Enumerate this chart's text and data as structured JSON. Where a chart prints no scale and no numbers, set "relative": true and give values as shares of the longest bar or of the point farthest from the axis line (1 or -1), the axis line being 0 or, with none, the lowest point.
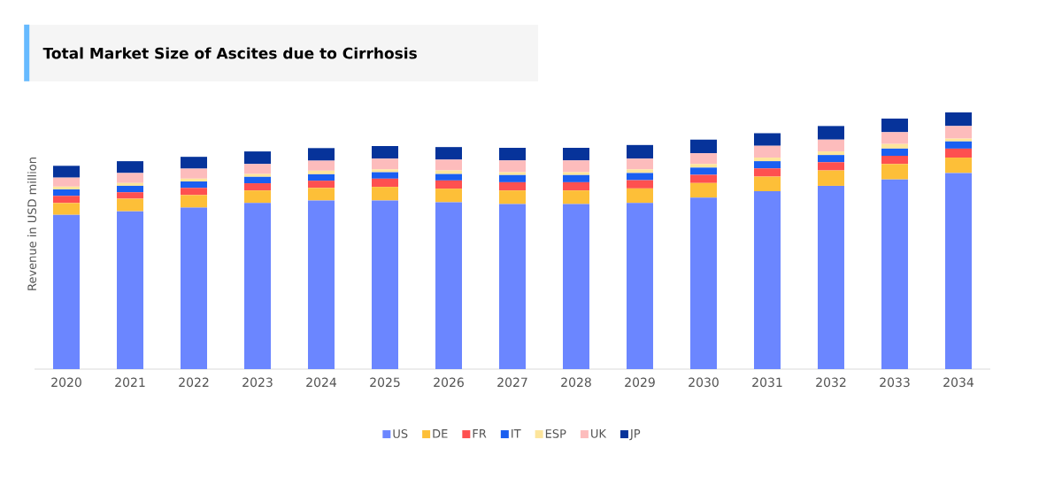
{
  "chart_data": {
    "type": "bar",
    "title": "Total Market Size of Ascites due to Cirrhosis",
    "ylabel": "Revenue in USD million",
    "relative": true,
    "stacked": true,
    "legend": "bottom",
    "categories": [
      "2020",
      "2021",
      "2022",
      "2023",
      "2024",
      "2025",
      "2026",
      "2027",
      "2028",
      "2029",
      "2030",
      "2031",
      "2032",
      "2033",
      "2034"
    ],
    "series": [
      {
        "name": "US",
        "color": "#6b86ff",
        "values": [
          0.601,
          0.615,
          0.629,
          0.647,
          0.657,
          0.657,
          0.65,
          0.643,
          0.643,
          0.647,
          0.668,
          0.693,
          0.714,
          0.739,
          0.764
        ]
      },
      {
        "name": "DE",
        "color": "#fdbf38",
        "values": [
          0.046,
          0.049,
          0.049,
          0.049,
          0.049,
          0.053,
          0.053,
          0.053,
          0.053,
          0.057,
          0.057,
          0.057,
          0.06,
          0.06,
          0.06
        ]
      },
      {
        "name": "FR",
        "color": "#fe5050",
        "values": [
          0.028,
          0.025,
          0.028,
          0.028,
          0.028,
          0.032,
          0.032,
          0.032,
          0.032,
          0.032,
          0.032,
          0.032,
          0.032,
          0.032,
          0.035
        ]
      },
      {
        "name": "IT",
        "color": "#1a5ff0",
        "values": [
          0.025,
          0.025,
          0.025,
          0.025,
          0.025,
          0.025,
          0.025,
          0.028,
          0.028,
          0.028,
          0.028,
          0.028,
          0.028,
          0.028,
          0.028
        ]
      },
      {
        "name": "ESP",
        "color": "#fde59b",
        "values": [
          0.011,
          0.011,
          0.011,
          0.011,
          0.014,
          0.011,
          0.014,
          0.011,
          0.011,
          0.014,
          0.014,
          0.014,
          0.014,
          0.018,
          0.011
        ]
      },
      {
        "name": "UK",
        "color": "#fdbcbc",
        "values": [
          0.035,
          0.039,
          0.039,
          0.039,
          0.039,
          0.042,
          0.042,
          0.046,
          0.046,
          0.042,
          0.042,
          0.046,
          0.046,
          0.046,
          0.049
        ]
      },
      {
        "name": "JP",
        "color": "#06339a",
        "values": [
          0.046,
          0.046,
          0.046,
          0.049,
          0.049,
          0.049,
          0.049,
          0.049,
          0.049,
          0.053,
          0.053,
          0.049,
          0.053,
          0.053,
          0.053
        ]
      }
    ]
  }
}
